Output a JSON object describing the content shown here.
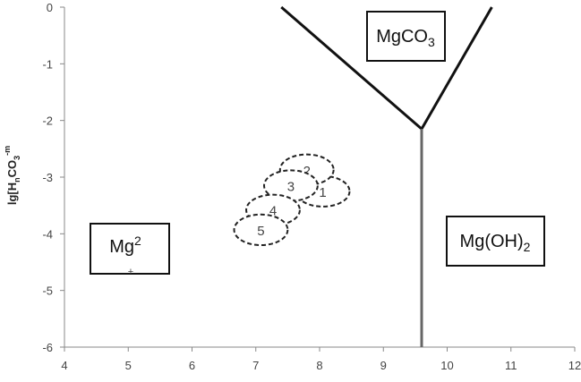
{
  "chart_data": {
    "type": "diagram",
    "title": "",
    "xlabel": "",
    "ylabel": "lg[HnCO3-m",
    "ylabel_parts": {
      "main": "lg[H",
      "sub1": "n",
      "mid": "CO",
      "sub2": "3",
      "sup": "-m"
    },
    "xlim": [
      4,
      12
    ],
    "ylim": [
      -6,
      0
    ],
    "x_ticks": [
      4,
      5,
      6,
      7,
      8,
      9,
      10,
      11,
      12
    ],
    "y_ticks": [
      0,
      -1,
      -2,
      -3,
      -4,
      -5,
      -6
    ],
    "grid": false,
    "boundaries": [
      {
        "name": "MgCO3 left boundary",
        "points": [
          [
            7.4,
            0
          ],
          [
            9.6,
            -2.15
          ]
        ]
      },
      {
        "name": "MgCO3 right boundary",
        "points": [
          [
            9.6,
            -2.15
          ],
          [
            10.7,
            0
          ]
        ]
      },
      {
        "name": "Mg(OH)2 boundary",
        "points": [
          [
            9.6,
            -2.15
          ],
          [
            9.6,
            -6
          ]
        ]
      }
    ],
    "regions": [
      {
        "label": "MgCO",
        "sub": "3",
        "sup": ""
      },
      {
        "label": "Mg(OH)",
        "sub": "2",
        "sup": ""
      },
      {
        "label": "Mg",
        "sub": "",
        "sup": "2",
        "extra": "+"
      }
    ],
    "clusters": [
      {
        "label": "1",
        "cx": 8.05,
        "cy": -3.25,
        "rx": 0.42,
        "ry": 0.27
      },
      {
        "label": "2",
        "cx": 7.8,
        "cy": -2.87,
        "rx": 0.42,
        "ry": 0.27
      },
      {
        "label": "3",
        "cx": 7.55,
        "cy": -3.15,
        "rx": 0.42,
        "ry": 0.27
      },
      {
        "label": "4",
        "cx": 7.27,
        "cy": -3.58,
        "rx": 0.42,
        "ry": 0.27
      },
      {
        "label": "5",
        "cx": 7.08,
        "cy": -3.93,
        "rx": 0.42,
        "ry": 0.27
      }
    ]
  }
}
